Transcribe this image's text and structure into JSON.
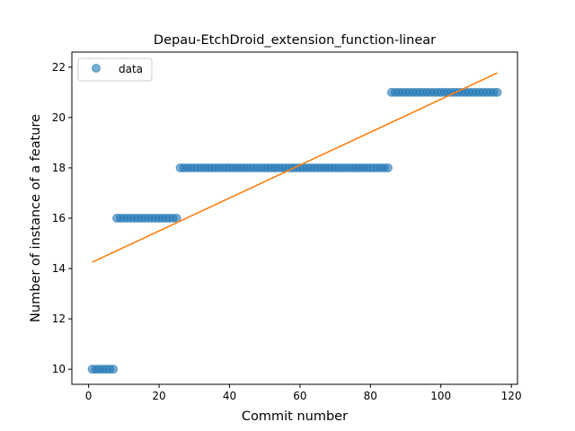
{
  "chart_data": {
    "type": "scatter",
    "title": "Depau-EtchDroid_extension_function-linear",
    "xlabel": "Commit number",
    "ylabel": "Number of instance of a feature",
    "xlim": [
      -4.75,
      121.75
    ],
    "ylim": [
      9.4,
      22.6
    ],
    "xticks": [
      0,
      20,
      40,
      60,
      80,
      100,
      120
    ],
    "yticks": [
      10,
      12,
      14,
      16,
      18,
      20,
      22
    ],
    "grid": false,
    "legend": {
      "position": "top-left",
      "entries": [
        "data"
      ]
    },
    "colors": {
      "data": "#1f77b4",
      "fit": "#ff7f0e"
    },
    "series": [
      {
        "name": "data",
        "kind": "scatter",
        "segments": [
          {
            "x_from": 1,
            "x_to": 7,
            "y": 10
          },
          {
            "x_from": 8,
            "x_to": 25,
            "y": 16
          },
          {
            "x_from": 26,
            "x_to": 85,
            "y": 18
          },
          {
            "x_from": 86,
            "x_to": 116,
            "y": 21
          }
        ]
      },
      {
        "kind": "line",
        "x": [
          1,
          116
        ],
        "y": [
          14.25,
          21.77
        ]
      }
    ]
  }
}
